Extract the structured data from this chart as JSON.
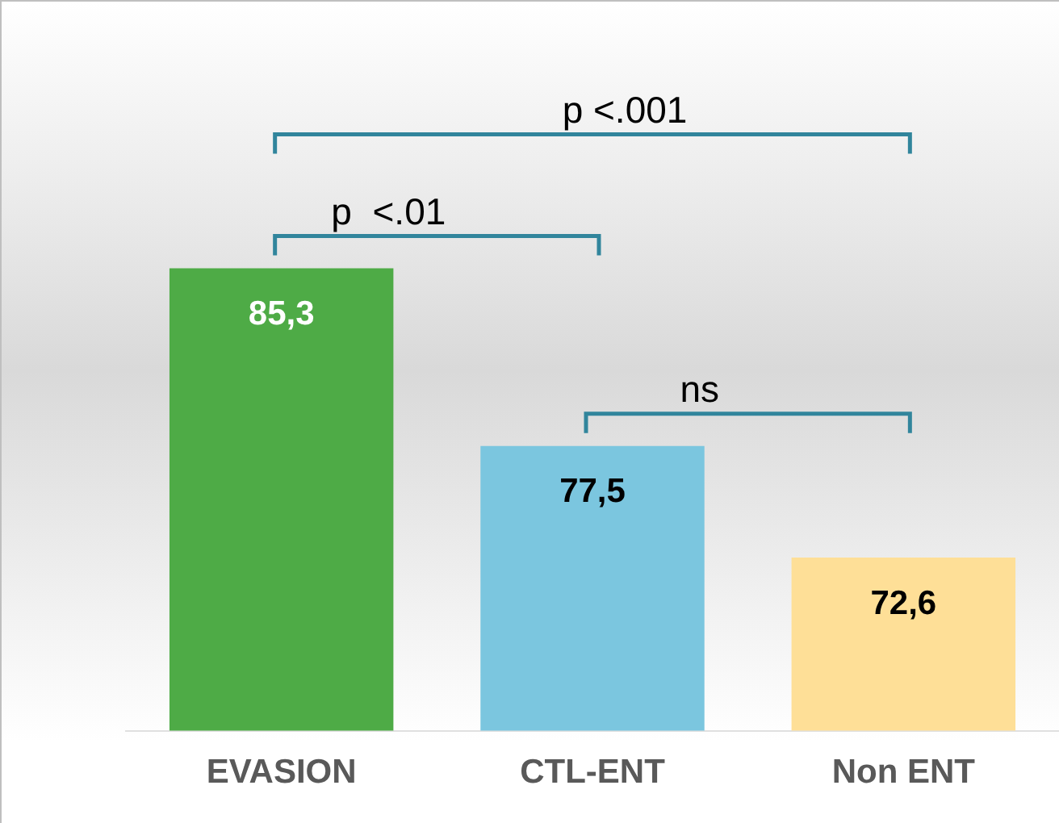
{
  "chart_data": {
    "type": "bar",
    "categories": [
      "EVASION",
      "CTL-ENT",
      "Non ENT"
    ],
    "values": [
      85.3,
      77.5,
      72.6
    ],
    "colors": [
      "#4eab46",
      "#7bc6df",
      "#fedf97"
    ],
    "value_labels": [
      "85,3",
      "77,5",
      "72,6"
    ],
    "ylim": [
      65,
      97
    ],
    "tick_labels": "x",
    "grid": false,
    "legend": false,
    "annotations": [
      "p <.001",
      "p  <.01",
      "ns"
    ]
  }
}
